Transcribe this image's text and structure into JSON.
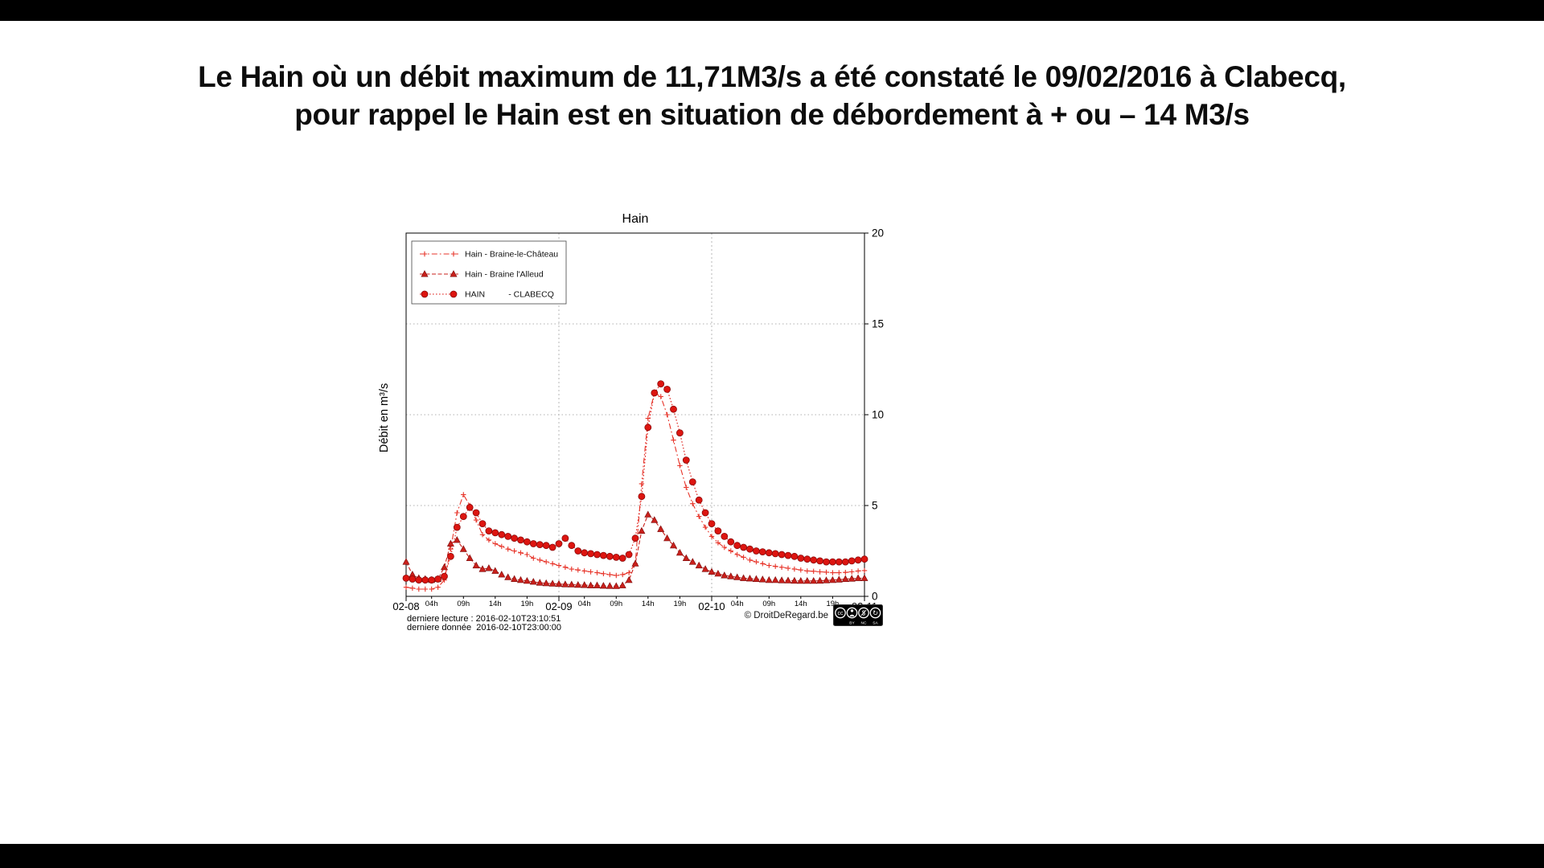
{
  "title": {
    "line1": "Le Hain où un débit maximum de 11,71M3/s a été constaté le 09/02/2016 à Clabecq,",
    "line2": "pour rappel le Hain est en situation de débordement à + ou – 14 M3/s"
  },
  "chart": {
    "footer": {
      "last_read": "derniere lecture : 2016-02-10T23:10:51",
      "last_data": "derniere donnée  2016-02-10T23:00:00",
      "copyright": "© DroitDeRegard.be",
      "license_parts": [
        "BY",
        "NC",
        "SA"
      ]
    }
  },
  "chart_data": {
    "type": "line",
    "title": "Hain",
    "xlabel": "",
    "ylabel": "Débit en m³/s",
    "x_unit": "hours since 2016-02-08 00:00",
    "xlim": [
      0,
      72
    ],
    "ylim": [
      0,
      20
    ],
    "yticks": [
      0,
      5,
      10,
      15,
      20
    ],
    "xticks": [
      0,
      4,
      9,
      14,
      19,
      24,
      28,
      33,
      38,
      43,
      48,
      52,
      57,
      62,
      67,
      72
    ],
    "xtick_labels": [
      "02-08",
      "04h",
      "09h",
      "14h",
      "19h",
      "02-09",
      "04h",
      "09h",
      "14h",
      "19h",
      "02-10",
      "04h",
      "09h",
      "14h",
      "19h",
      "02-11"
    ],
    "xtick_major": [
      true,
      false,
      false,
      false,
      false,
      true,
      false,
      false,
      false,
      false,
      true,
      false,
      false,
      false,
      false,
      true
    ],
    "grid": {
      "y_values": [
        5,
        10,
        15
      ],
      "x_values": [
        24,
        48
      ],
      "style": "dotted",
      "color": "#b0b0b0"
    },
    "legend_position": "upper left",
    "x": [
      0,
      1,
      2,
      3,
      4,
      5,
      6,
      7,
      8,
      9,
      10,
      11,
      12,
      13,
      14,
      15,
      16,
      17,
      18,
      19,
      20,
      21,
      22,
      23,
      24,
      25,
      26,
      27,
      28,
      29,
      30,
      31,
      32,
      33,
      34,
      35,
      36,
      37,
      38,
      39,
      40,
      41,
      42,
      43,
      44,
      45,
      46,
      47,
      48,
      49,
      50,
      51,
      52,
      53,
      54,
      55,
      56,
      57,
      58,
      59,
      60,
      61,
      62,
      63,
      64,
      65,
      66,
      67,
      68,
      69,
      70,
      71,
      72
    ],
    "series": [
      {
        "name": "Hain - Braine-le-Château",
        "color": "#e73328",
        "line": "dashdot",
        "marker": "plus",
        "values": [
          0.5,
          0.45,
          0.4,
          0.4,
          0.4,
          0.5,
          0.9,
          2.6,
          4.6,
          5.6,
          5.0,
          4.2,
          3.4,
          3.1,
          2.9,
          2.75,
          2.6,
          2.5,
          2.4,
          2.3,
          2.1,
          2.0,
          1.9,
          1.8,
          1.7,
          1.6,
          1.5,
          1.45,
          1.4,
          1.35,
          1.3,
          1.25,
          1.2,
          1.15,
          1.2,
          1.3,
          1.8,
          6.2,
          9.8,
          11.2,
          11.0,
          10.0,
          8.6,
          7.2,
          6.0,
          5.1,
          4.4,
          3.8,
          3.3,
          2.95,
          2.7,
          2.5,
          2.3,
          2.15,
          2.0,
          1.9,
          1.8,
          1.7,
          1.65,
          1.6,
          1.55,
          1.5,
          1.45,
          1.4,
          1.38,
          1.35,
          1.33,
          1.3,
          1.3,
          1.32,
          1.35,
          1.4,
          1.42
        ]
      },
      {
        "name": "Hain - Braine l'Alleud",
        "color": "#c9201b",
        "line": "dashed",
        "marker": "triangle",
        "values": [
          1.9,
          1.2,
          1.0,
          0.95,
          0.9,
          0.95,
          1.6,
          2.9,
          3.1,
          2.6,
          2.1,
          1.7,
          1.5,
          1.55,
          1.4,
          1.2,
          1.05,
          0.95,
          0.9,
          0.85,
          0.8,
          0.75,
          0.72,
          0.7,
          0.68,
          0.66,
          0.65,
          0.63,
          0.62,
          0.6,
          0.6,
          0.58,
          0.57,
          0.56,
          0.6,
          0.9,
          1.8,
          3.6,
          4.5,
          4.2,
          3.7,
          3.2,
          2.8,
          2.4,
          2.1,
          1.9,
          1.7,
          1.5,
          1.35,
          1.25,
          1.15,
          1.1,
          1.05,
          1.0,
          0.98,
          0.95,
          0.93,
          0.9,
          0.9,
          0.88,
          0.87,
          0.86,
          0.85,
          0.85,
          0.85,
          0.86,
          0.88,
          0.9,
          0.92,
          0.95,
          0.97,
          1.0,
          1.0
        ]
      },
      {
        "name": "HAIN          - CLABECQ",
        "color": "#dd1510",
        "line": "dotted",
        "marker": "circle",
        "values": [
          1.0,
          0.95,
          0.9,
          0.9,
          0.9,
          0.95,
          1.1,
          2.2,
          3.8,
          4.4,
          4.9,
          4.6,
          4.0,
          3.6,
          3.5,
          3.4,
          3.3,
          3.2,
          3.1,
          3.0,
          2.9,
          2.85,
          2.8,
          2.7,
          2.9,
          3.2,
          2.8,
          2.5,
          2.4,
          2.35,
          2.3,
          2.25,
          2.2,
          2.15,
          2.1,
          2.3,
          3.2,
          5.5,
          9.3,
          11.2,
          11.7,
          11.4,
          10.3,
          9.0,
          7.5,
          6.3,
          5.3,
          4.6,
          4.0,
          3.6,
          3.3,
          3.0,
          2.8,
          2.7,
          2.6,
          2.5,
          2.45,
          2.4,
          2.35,
          2.3,
          2.25,
          2.2,
          2.1,
          2.05,
          2.0,
          1.95,
          1.9,
          1.9,
          1.9,
          1.9,
          1.95,
          2.0,
          2.05
        ]
      }
    ]
  }
}
